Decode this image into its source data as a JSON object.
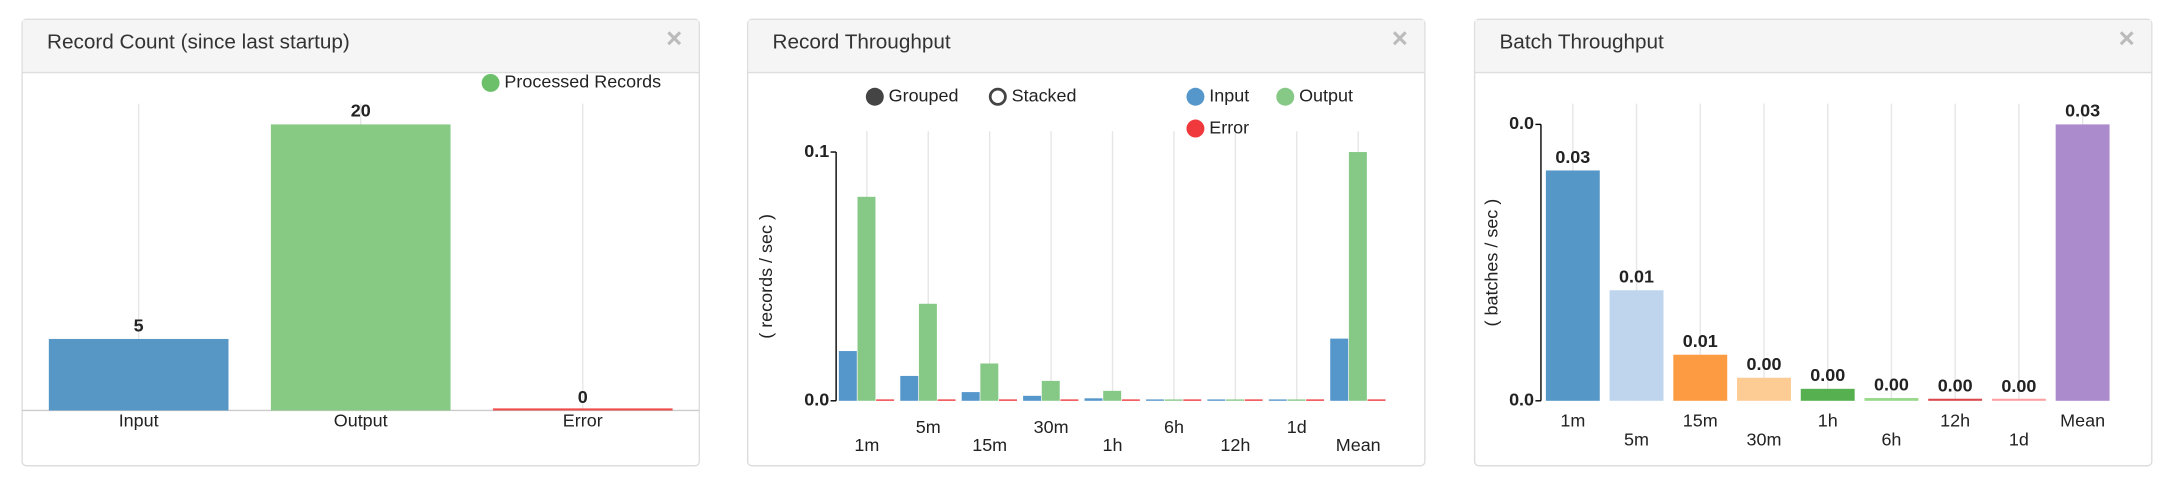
{
  "chart_data": [
    {
      "type": "bar",
      "title": "Record Count (since last startup)",
      "close_label": "×",
      "categories": [
        "Input",
        "Output",
        "Error"
      ],
      "series": [
        {
          "name": "Processed Records",
          "color": "#6cc06a",
          "values": [
            5,
            20,
            0
          ]
        }
      ],
      "colors": [
        "#5697c6",
        "#86ca84",
        "#ef4b4b"
      ],
      "grid": true
    },
    {
      "type": "bar",
      "title": "Record Throughput",
      "close_label": "×",
      "controls": [
        {
          "label": "Grouped",
          "selected": true
        },
        {
          "label": "Stacked",
          "selected": false
        }
      ],
      "categories": [
        "1m",
        "5m",
        "15m",
        "30m",
        "1h",
        "6h",
        "12h",
        "1d",
        "Mean"
      ],
      "series": [
        {
          "name": "Input",
          "color": "#5697cb",
          "values": [
            0.02,
            0.01,
            0.0035,
            0.002,
            0.001,
            0.0001,
            0.0001,
            0.0001,
            0.025
          ]
        },
        {
          "name": "Output",
          "color": "#86c987",
          "values": [
            0.082,
            0.039,
            0.015,
            0.008,
            0.004,
            0.0005,
            0.0003,
            0.0002,
            0.1
          ]
        },
        {
          "name": "Error",
          "color": "#f0393d",
          "values": [
            0,
            0,
            0,
            0,
            0,
            0,
            0,
            0,
            0
          ]
        }
      ],
      "y_label": "( records / sec )",
      "ylim": [
        0,
        0.1
      ],
      "yticks": [
        {
          "value": 0,
          "label": "0.0"
        },
        0.1
      ],
      "grid": true
    },
    {
      "type": "bar",
      "title": "Batch Throughput",
      "close_label": "×",
      "categories": [
        "1m",
        "5m",
        "15m",
        "30m",
        "1h",
        "6h",
        "12h",
        "1d",
        "Mean"
      ],
      "values": [
        0.025,
        0.012,
        0.005,
        0.0025,
        0.0013,
        0.0003,
        0.0002,
        0.0001,
        0.03
      ],
      "value_labels": [
        "0.03",
        "0.01",
        "0.01",
        "0.00",
        "0.00",
        "0.00",
        "0.00",
        "0.00",
        "0.03"
      ],
      "colors": [
        "#5597c6",
        "#bfd5ee",
        "#fd9b42",
        "#fdcb94",
        "#56b04f",
        "#98d98a",
        "#d9464b",
        "#fca0a0",
        "#ab8bcb"
      ],
      "y_label": "( batches / sec )",
      "ylim": [
        0,
        0.03
      ],
      "yticks": [
        {
          "value": 0,
          "label": "0.0"
        },
        {
          "value": 0.03,
          "label": "0.0"
        }
      ],
      "grid": true
    }
  ]
}
